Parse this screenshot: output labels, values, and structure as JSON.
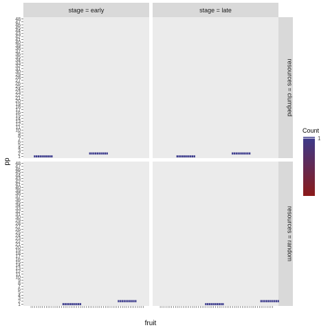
{
  "chart_data": {
    "type": "heatmap",
    "facet_cols": [
      "stage = early",
      "stage = late"
    ],
    "facet_rows": [
      "resources = clumped",
      "resources = random"
    ],
    "xlabel": "fruit",
    "ylabel": "pp",
    "y_ticks": [
      1,
      2,
      3,
      4,
      5,
      6,
      7,
      8,
      9,
      10,
      11,
      12,
      13,
      14,
      15,
      16,
      17,
      18,
      19,
      20,
      21,
      22,
      23,
      24,
      25,
      26,
      27,
      28,
      29,
      30,
      31,
      32,
      33,
      34,
      35,
      36,
      37,
      38,
      39,
      40,
      41,
      42,
      43,
      44,
      45,
      46,
      47,
      48
    ],
    "x_levels": 60,
    "panels": [
      {
        "facet_col": "stage = early",
        "facet_row": "resources = clumped",
        "cells": [
          {
            "x_start": 3,
            "x_end": 12,
            "y": 1,
            "count": 1
          },
          {
            "x_start": 32,
            "x_end": 41,
            "y": 2,
            "count": 1
          }
        ]
      },
      {
        "facet_col": "stage = late",
        "facet_row": "resources = clumped",
        "cells": [
          {
            "x_start": 10,
            "x_end": 19,
            "y": 1,
            "count": 1
          },
          {
            "x_start": 39,
            "x_end": 48,
            "y": 2,
            "count": 1
          }
        ]
      },
      {
        "facet_col": "stage = early",
        "facet_row": "resources = random",
        "cells": [
          {
            "x_start": 18,
            "x_end": 27,
            "y": 1,
            "count": 1
          },
          {
            "x_start": 47,
            "x_end": 56,
            "y": 2,
            "count": 1
          }
        ]
      },
      {
        "facet_col": "stage = late",
        "facet_row": "resources = random",
        "cells": [
          {
            "x_start": 25,
            "x_end": 34,
            "y": 1,
            "count": 1
          },
          {
            "x_start": 54,
            "x_end": 63,
            "y": 2,
            "count": 1
          }
        ]
      }
    ],
    "legend": {
      "title": "Count",
      "labels": [
        "1"
      ],
      "placement": "right"
    },
    "colors": {
      "fill_high": "#3b3a8c",
      "fill_low": "#8b1a1a",
      "panel_background": "#ebebeb",
      "strip_background": "#d9d9d9"
    }
  }
}
